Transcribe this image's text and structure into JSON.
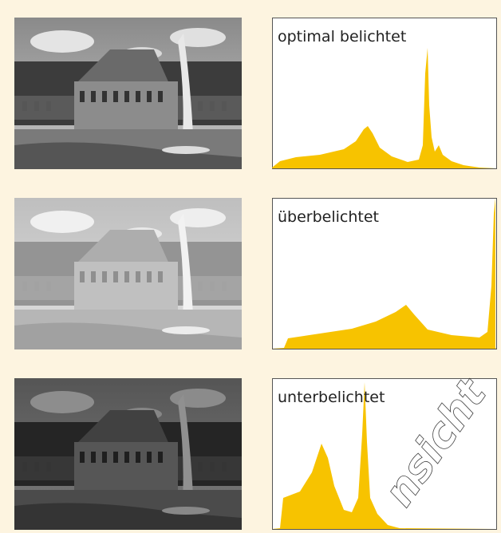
{
  "panels": [
    {
      "label": "optimal belichtet"
    },
    {
      "label": "überbelichtet"
    },
    {
      "label": "unterbelichtet"
    }
  ],
  "watermark": "nsicht"
}
